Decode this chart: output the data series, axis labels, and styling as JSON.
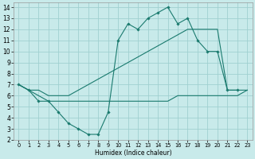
{
  "xlabel": "Humidex (Indice chaleur)",
  "bg_color": "#c8eaea",
  "grid_color": "#a0d0d0",
  "line_color": "#1a7a6e",
  "xlim": [
    -0.5,
    23.5
  ],
  "ylim": [
    2,
    14.4
  ],
  "xticks": [
    0,
    1,
    2,
    3,
    4,
    5,
    6,
    7,
    8,
    9,
    10,
    11,
    12,
    13,
    14,
    15,
    16,
    17,
    18,
    19,
    20,
    21,
    22,
    23
  ],
  "yticks": [
    2,
    3,
    4,
    5,
    6,
    7,
    8,
    9,
    10,
    11,
    12,
    13,
    14
  ],
  "line1_x": [
    0,
    1,
    2,
    3,
    4,
    5,
    6,
    7,
    8,
    9,
    10,
    11,
    12,
    13,
    14,
    15,
    16,
    17,
    18,
    19,
    20,
    21,
    22,
    23
  ],
  "line1_y": [
    7,
    6.5,
    6.0,
    5.5,
    5.5,
    5.5,
    5.5,
    5.5,
    5.5,
    5.5,
    5.5,
    5.5,
    5.5,
    5.5,
    5.5,
    5.5,
    6.0,
    6.0,
    6.0,
    6.0,
    6.0,
    6.0,
    6.0,
    6.5
  ],
  "line2_x": [
    0,
    1,
    2,
    3,
    4,
    5,
    6,
    7,
    8,
    9,
    10,
    11,
    12,
    13,
    14,
    15,
    16,
    17,
    18,
    19,
    20,
    21,
    22,
    23
  ],
  "line2_y": [
    7,
    6.5,
    6.5,
    6.0,
    6.0,
    6.0,
    6.5,
    7.0,
    7.5,
    8.0,
    8.5,
    9.0,
    9.5,
    10.0,
    10.5,
    11.0,
    11.5,
    12.0,
    12.0,
    12.0,
    12.0,
    6.5,
    6.5,
    6.5
  ],
  "line3_x": [
    0,
    1,
    2,
    3,
    4,
    5,
    6,
    7,
    8,
    9,
    10,
    11,
    12,
    13,
    14,
    15,
    16,
    17,
    18,
    19,
    20,
    21,
    22
  ],
  "line3_y": [
    7,
    6.5,
    5.5,
    5.5,
    4.5,
    3.5,
    3.0,
    2.5,
    2.5,
    4.5,
    11,
    12.5,
    12.0,
    13.0,
    13.5,
    14.0,
    12.5,
    13.0,
    11.0,
    10.0,
    10.0,
    6.5,
    6.5
  ]
}
